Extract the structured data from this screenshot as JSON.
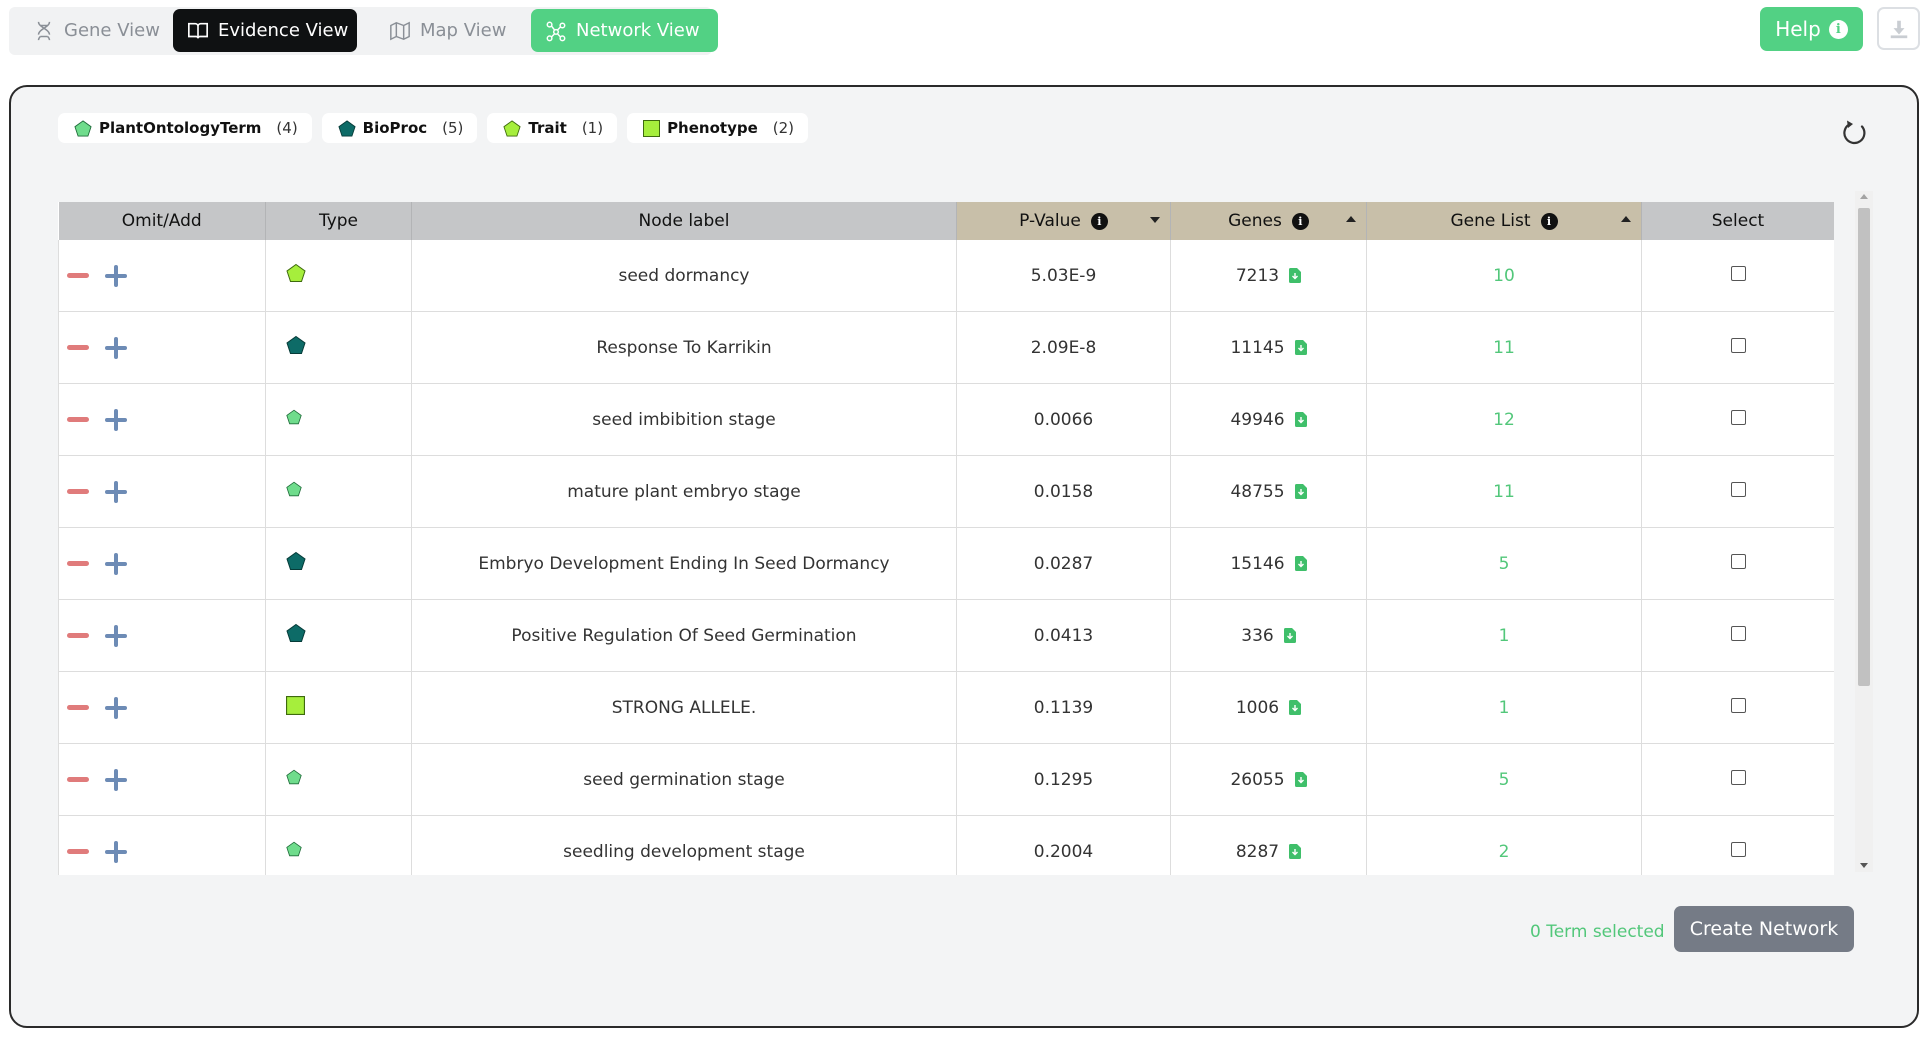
{
  "nav": {
    "tabs": [
      {
        "label": "Gene View",
        "icon": "dna-icon"
      },
      {
        "label": "Evidence View",
        "icon": "book-icon"
      },
      {
        "label": "Map View",
        "icon": "map-icon"
      },
      {
        "label": "Network View",
        "icon": "network-icon"
      }
    ],
    "help_label": "Help"
  },
  "legend": [
    {
      "name": "PlantOntologyTerm",
      "count": "(4)",
      "shape": "pentagon",
      "color": "#6fdc8c"
    },
    {
      "name": "BioProc",
      "count": "(5)",
      "shape": "pentagon",
      "color": "#0d6b67"
    },
    {
      "name": "Trait",
      "count": "(1)",
      "shape": "pentagon",
      "color": "#a6ee3c"
    },
    {
      "name": "Phenotype",
      "count": "(2)",
      "shape": "square",
      "color": "#a6ee3c"
    }
  ],
  "table": {
    "headers": {
      "omit_add": "Omit/Add",
      "type": "Type",
      "node_label": "Node label",
      "p_value": "P-Value",
      "genes": "Genes",
      "gene_list": "Gene List",
      "select": "Select"
    },
    "rows": [
      {
        "type": "Trait",
        "label": "seed dormancy",
        "p_value": "5.03E-9",
        "genes": "7213",
        "gene_list": "10"
      },
      {
        "type": "BioProc",
        "label": "Response To Karrikin",
        "p_value": "2.09E-8",
        "genes": "11145",
        "gene_list": "11"
      },
      {
        "type": "PlantOntologyTerm",
        "label": "seed imbibition stage",
        "p_value": "0.0066",
        "genes": "49946",
        "gene_list": "12"
      },
      {
        "type": "PlantOntologyTerm",
        "label": "mature plant embryo stage",
        "p_value": "0.0158",
        "genes": "48755",
        "gene_list": "11"
      },
      {
        "type": "BioProc",
        "label": "Embryo Development Ending In Seed Dormancy",
        "p_value": "0.0287",
        "genes": "15146",
        "gene_list": "5"
      },
      {
        "type": "BioProc",
        "label": "Positive Regulation Of Seed Germination",
        "p_value": "0.0413",
        "genes": "336",
        "gene_list": "1"
      },
      {
        "type": "Phenotype",
        "label": "STRONG ALLELE.",
        "p_value": "0.1139",
        "genes": "1006",
        "gene_list": "1"
      },
      {
        "type": "PlantOntologyTerm",
        "label": "seed germination stage",
        "p_value": "0.1295",
        "genes": "26055",
        "gene_list": "5"
      },
      {
        "type": "PlantOntologyTerm",
        "label": "seedling development stage",
        "p_value": "0.2004",
        "genes": "8287",
        "gene_list": "2"
      }
    ]
  },
  "footer": {
    "term_selected": "0 Term selected",
    "create_network_label": "Create Network"
  },
  "colors": {
    "accent_green": "#52d184",
    "gene_list_green": "#52c77a",
    "omit_red": "#e07b7b",
    "add_blue": "#6d8bb5"
  }
}
